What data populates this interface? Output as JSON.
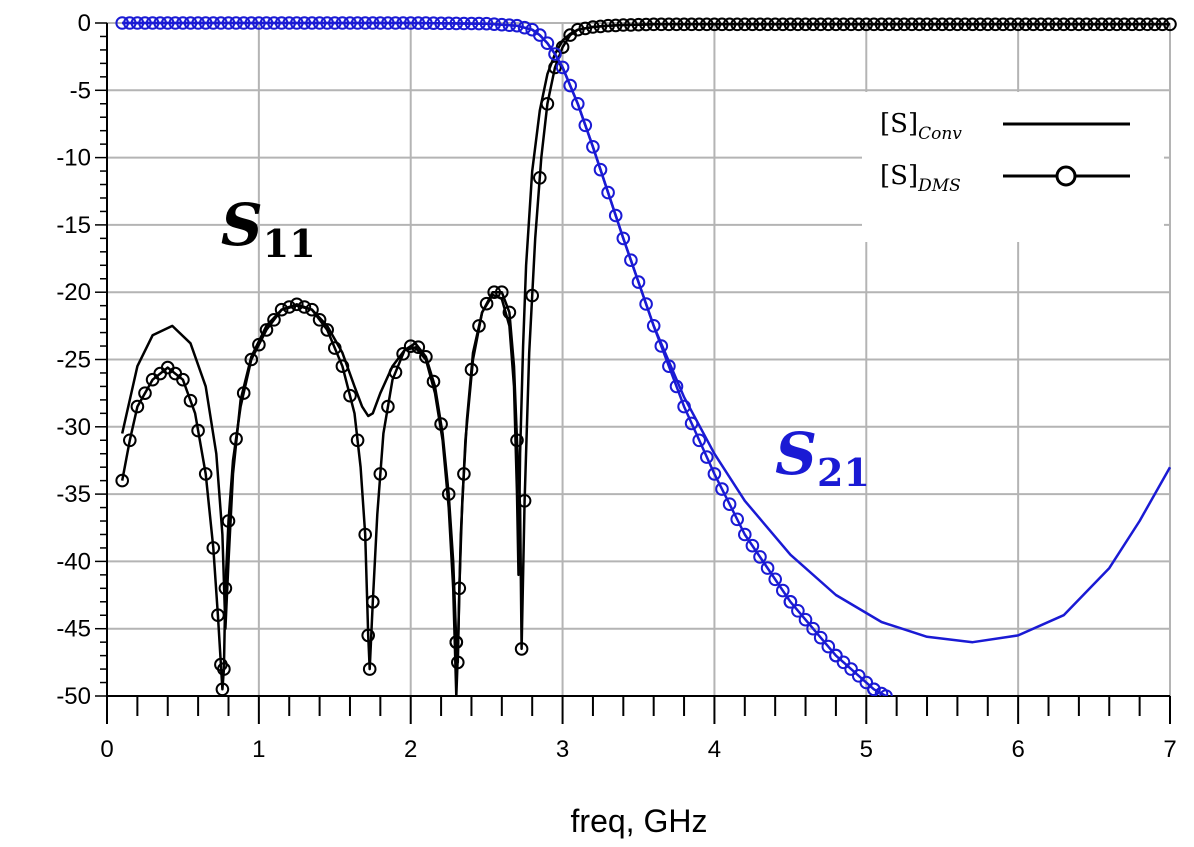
{
  "chart_data": {
    "type": "line",
    "xlabel": "freq, GHz",
    "ylabel": "",
    "xlim": [
      0,
      7
    ],
    "ylim": [
      -50,
      0
    ],
    "x_ticks": [
      0,
      1,
      2,
      3,
      4,
      5,
      6,
      7
    ],
    "y_ticks": [
      0,
      -5,
      -10,
      -15,
      -20,
      -25,
      -30,
      -35,
      -40,
      -45,
      -50
    ],
    "grid": true,
    "legend": {
      "placement": "top-right",
      "entries": [
        {
          "base": "[S]",
          "sub": "Conv",
          "style": "line"
        },
        {
          "base": "[S]",
          "sub": "DMS",
          "style": "line-with-circles"
        }
      ]
    },
    "annotations": [
      {
        "text": "S",
        "sub": "11",
        "color": "#000000",
        "x": 0.75,
        "y": -16.5
      },
      {
        "text": "S",
        "sub": "21",
        "color": "#1a1ad4",
        "x": 4.4,
        "y": -33.5
      }
    ],
    "colors": {
      "s11": "#000000",
      "s21": "#1a1ad4",
      "grid": "#b4b4b4"
    },
    "series": [
      {
        "curve": "S11",
        "set": "Conv",
        "style": "line",
        "x": [
          0.1,
          0.2,
          0.3,
          0.43,
          0.55,
          0.65,
          0.72,
          0.76,
          0.78,
          0.8,
          0.83,
          0.88,
          0.95,
          1.05,
          1.15,
          1.25,
          1.35,
          1.45,
          1.55,
          1.63,
          1.68,
          1.72,
          1.75,
          1.8,
          1.88,
          1.96,
          2.03,
          2.1,
          2.16,
          2.21,
          2.25,
          2.28,
          2.3,
          2.31,
          2.33,
          2.36,
          2.41,
          2.47,
          2.54,
          2.6,
          2.65,
          2.68,
          2.7,
          2.71,
          2.72,
          2.74,
          2.76,
          2.8,
          2.85,
          2.9,
          2.95,
          3.0,
          3.05,
          3.1,
          3.2,
          3.3,
          3.4,
          3.6,
          4.0,
          5.0,
          6.0,
          7.0
        ],
        "y": [
          -30.5,
          -25.5,
          -23.2,
          -22.5,
          -23.8,
          -27.0,
          -32.0,
          -38.0,
          -45.0,
          -40.0,
          -33.5,
          -28.0,
          -24.8,
          -22.5,
          -21.3,
          -21.0,
          -21.3,
          -22.5,
          -24.5,
          -27.0,
          -28.5,
          -29.2,
          -29.0,
          -27.5,
          -25.5,
          -24.3,
          -24.1,
          -25.0,
          -27.5,
          -31.0,
          -36.0,
          -42.0,
          -50.0,
          -47.0,
          -38.0,
          -31.0,
          -25.0,
          -21.5,
          -20.2,
          -20.5,
          -22.5,
          -27.0,
          -35.0,
          -41.0,
          -32.0,
          -24.0,
          -18.0,
          -11.0,
          -6.5,
          -3.8,
          -2.3,
          -1.3,
          -0.8,
          -0.5,
          -0.3,
          -0.2,
          -0.15,
          -0.1,
          -0.1,
          -0.1,
          -0.1,
          -0.1
        ]
      },
      {
        "curve": "S11",
        "set": "DMS",
        "style": "line-with-circles",
        "x": [
          0.1,
          0.15,
          0.2,
          0.3,
          0.4,
          0.5,
          0.58,
          0.65,
          0.7,
          0.73,
          0.76,
          0.77,
          0.78,
          0.8,
          0.83,
          0.88,
          0.95,
          1.05,
          1.15,
          1.25,
          1.35,
          1.45,
          1.55,
          1.63,
          1.67,
          1.7,
          1.72,
          1.73,
          1.75,
          1.78,
          1.82,
          1.88,
          1.96,
          2.03,
          2.1,
          2.16,
          2.21,
          2.25,
          2.28,
          2.3,
          2.31,
          2.32,
          2.34,
          2.37,
          2.41,
          2.47,
          2.54,
          2.6,
          2.65,
          2.68,
          2.7,
          2.72,
          2.73,
          2.75,
          2.78,
          2.82,
          2.86,
          2.9,
          2.95,
          3.0,
          3.05,
          3.1,
          3.2,
          3.3,
          3.4,
          3.6,
          4.0,
          5.0,
          6.0,
          7.0
        ],
        "y": [
          -34.0,
          -31.0,
          -28.5,
          -26.5,
          -25.6,
          -26.5,
          -29.0,
          -33.5,
          -39.0,
          -44.0,
          -49.5,
          -48.0,
          -42.0,
          -37.0,
          -32.5,
          -28.5,
          -25.0,
          -22.8,
          -21.3,
          -20.9,
          -21.3,
          -22.8,
          -25.5,
          -29.0,
          -33.0,
          -38.0,
          -45.5,
          -48.0,
          -43.0,
          -36.5,
          -30.5,
          -26.5,
          -24.3,
          -23.8,
          -24.8,
          -27.0,
          -30.5,
          -35.0,
          -40.0,
          -46.0,
          -47.5,
          -42.0,
          -35.5,
          -29.5,
          -24.5,
          -21.5,
          -20.0,
          -20.0,
          -21.5,
          -25.5,
          -31.0,
          -36.0,
          -46.5,
          -35.5,
          -24.5,
          -16.0,
          -10.0,
          -6.0,
          -3.3,
          -1.8,
          -0.9,
          -0.5,
          -0.3,
          -0.2,
          -0.15,
          -0.1,
          -0.1,
          -0.1,
          -0.1,
          -0.1
        ]
      },
      {
        "curve": "S21",
        "set": "Conv",
        "style": "line",
        "x": [
          0.1,
          1.0,
          2.0,
          2.5,
          2.7,
          2.8,
          2.85,
          2.9,
          2.95,
          3.0,
          3.1,
          3.2,
          3.4,
          3.6,
          3.8,
          4.0,
          4.2,
          4.5,
          4.8,
          5.1,
          5.4,
          5.7,
          6.0,
          6.3,
          6.6,
          6.8,
          7.0
        ],
        "y": [
          0,
          0,
          0,
          -0.05,
          -0.2,
          -0.5,
          -0.9,
          -1.5,
          -2.3,
          -3.3,
          -6.0,
          -9.2,
          -16.0,
          -22.5,
          -27.8,
          -32.0,
          -35.5,
          -39.5,
          -42.5,
          -44.5,
          -45.6,
          -46.0,
          -45.5,
          -44.0,
          -40.5,
          -37.0,
          -33.0
        ]
      },
      {
        "curve": "S21",
        "set": "DMS",
        "style": "line-with-circles",
        "x": [
          0.1,
          1.0,
          2.0,
          2.5,
          2.7,
          2.8,
          2.85,
          2.9,
          2.95,
          3.0,
          3.1,
          3.2,
          3.4,
          3.6,
          3.8,
          4.0,
          4.2,
          4.5,
          4.8,
          5.05,
          5.13
        ],
        "y": [
          0,
          0,
          0,
          -0.05,
          -0.2,
          -0.5,
          -0.9,
          -1.5,
          -2.3,
          -3.3,
          -6.0,
          -9.2,
          -16.0,
          -22.5,
          -28.5,
          -33.5,
          -38.0,
          -43.0,
          -47.0,
          -49.5,
          -50.0
        ]
      }
    ]
  }
}
